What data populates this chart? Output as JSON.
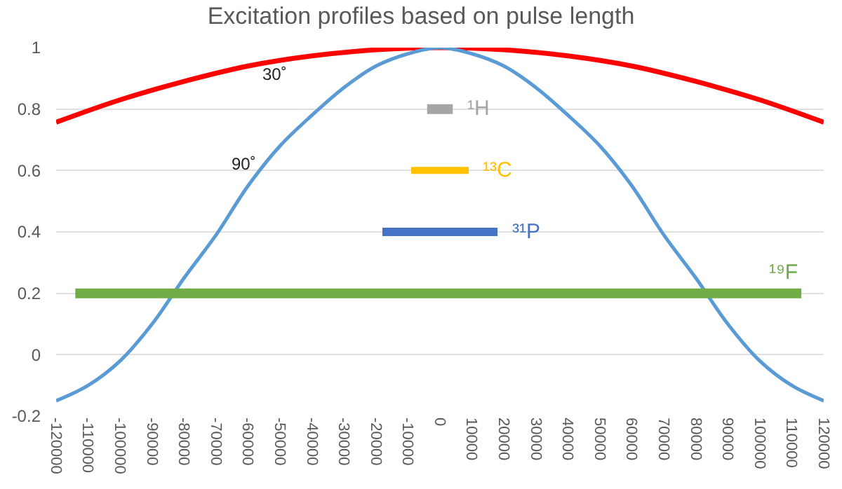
{
  "chart_data": {
    "type": "line",
    "title": "Excitation profiles based on pulse length",
    "xlim": [
      -120000,
      120000
    ],
    "xticks": [
      -120000,
      -110000,
      -100000,
      -90000,
      -80000,
      -70000,
      -60000,
      -50000,
      -40000,
      -30000,
      -20000,
      -10000,
      0,
      10000,
      20000,
      30000,
      40000,
      50000,
      60000,
      70000,
      80000,
      90000,
      100000,
      110000,
      120000
    ],
    "ylim": [
      -0.2,
      1
    ],
    "yticks": [
      -0.2,
      0,
      0.2,
      0.4,
      0.6,
      0.8,
      1
    ],
    "grid": "y",
    "legend": false,
    "marker": "none",
    "line_style": "solid",
    "series": [
      {
        "name": "30˚",
        "color": "#ff0000",
        "x": [
          -120000,
          -100000,
          -80000,
          -60000,
          -40000,
          -20000,
          0,
          20000,
          40000,
          60000,
          80000,
          100000,
          120000
        ],
        "values": [
          0.757,
          0.83,
          0.89,
          0.94,
          0.973,
          0.993,
          1,
          0.993,
          0.973,
          0.94,
          0.89,
          0.83,
          0.757
        ]
      },
      {
        "name": "90˚",
        "color": "#5b9bd5",
        "x": [
          -120000,
          -110000,
          -100000,
          -90000,
          -80000,
          -70000,
          -60000,
          -50000,
          -40000,
          -30000,
          -20000,
          -10000,
          0,
          10000,
          20000,
          30000,
          40000,
          50000,
          60000,
          70000,
          80000,
          90000,
          100000,
          110000,
          120000
        ],
        "values": [
          -0.15,
          -0.1,
          -0.02,
          0.1,
          0.25,
          0.39,
          0.55,
          0.68,
          0.78,
          0.87,
          0.94,
          0.98,
          1,
          0.98,
          0.94,
          0.87,
          0.78,
          0.68,
          0.55,
          0.39,
          0.25,
          0.1,
          -0.02,
          -0.1,
          -0.15
        ]
      },
      {
        "name": "¹H",
        "color": "#a5a5a5",
        "x": [
          -4000,
          4000
        ],
        "values": [
          0.8,
          0.8
        ]
      },
      {
        "name": "¹³C",
        "color": "#ffc000",
        "x": [
          -9000,
          9000
        ],
        "values": [
          0.6,
          0.6
        ]
      },
      {
        "name": "³¹P",
        "color": "#4472c4",
        "x": [
          -18000,
          18000
        ],
        "values": [
          0.4,
          0.4
        ]
      },
      {
        "name": "¹⁹F",
        "color": "#70ad47",
        "x": [
          -114000,
          113000
        ],
        "values": [
          0.2,
          0.2
        ]
      }
    ]
  }
}
